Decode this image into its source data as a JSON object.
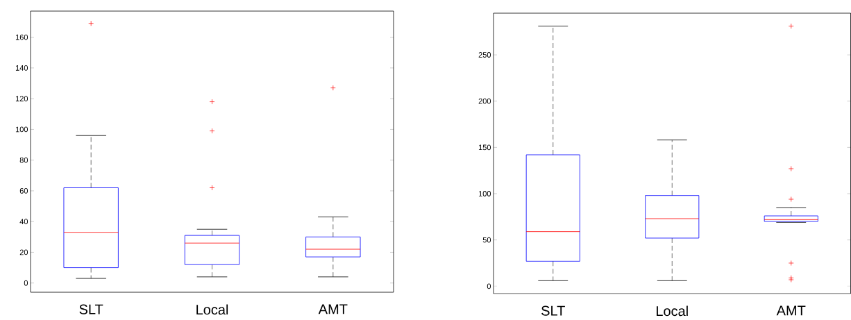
{
  "chart_data": [
    {
      "type": "box",
      "categories": [
        "SLT",
        "Local",
        "AMT"
      ],
      "ylim": [
        -6,
        177
      ],
      "yticks": [
        0,
        20,
        40,
        60,
        80,
        100,
        120,
        140,
        160
      ],
      "boxes": [
        {
          "low": 3,
          "q1": 10,
          "median": 33,
          "q3": 62,
          "high": 96,
          "outliers": [
            169
          ]
        },
        {
          "low": 4,
          "q1": 12,
          "median": 26,
          "q3": 31,
          "high": 35,
          "outliers": [
            62,
            99,
            118
          ]
        },
        {
          "low": 4,
          "q1": 17,
          "median": 22,
          "q3": 30,
          "high": 43,
          "outliers": [
            127
          ]
        }
      ]
    },
    {
      "type": "box",
      "categories": [
        "SLT",
        "Local",
        "AMT"
      ],
      "ylim": [
        -8,
        295
      ],
      "yticks": [
        0,
        50,
        100,
        150,
        200,
        250
      ],
      "boxes": [
        {
          "low": 6,
          "q1": 27,
          "median": 59,
          "q3": 142,
          "high": 281
        },
        {
          "low": 6,
          "q1": 52,
          "median": 73,
          "q3": 98,
          "high": 158
        },
        {
          "low": 69,
          "q1": 70,
          "median": 72,
          "q3": 76,
          "high": 85,
          "outliers": [
            7,
            9,
            25,
            94,
            127,
            281
          ]
        }
      ]
    }
  ]
}
